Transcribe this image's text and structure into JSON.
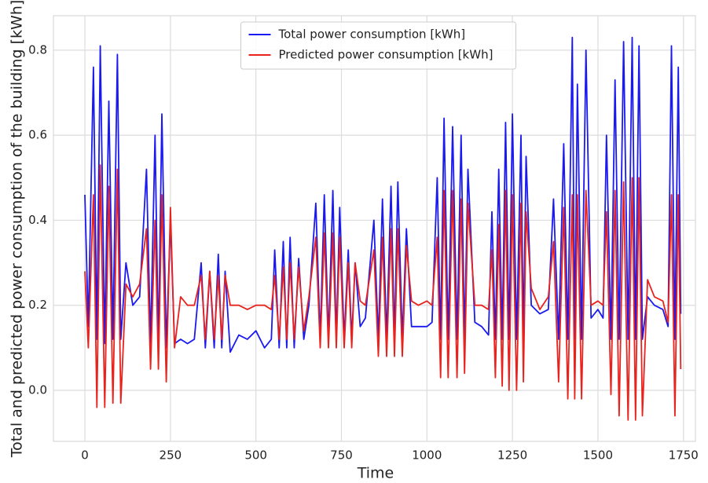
{
  "chart_data": {
    "type": "line",
    "xlabel": "Time",
    "ylabel": "Total and predicted power consumption of the building [kWh]",
    "x": [
      0,
      10,
      25,
      35,
      45,
      58,
      70,
      82,
      95,
      105,
      120,
      140,
      160,
      180,
      192,
      205,
      215,
      225,
      238,
      250,
      262,
      280,
      300,
      320,
      340,
      352,
      365,
      378,
      390,
      400,
      410,
      425,
      450,
      475,
      500,
      525,
      545,
      555,
      568,
      580,
      590,
      600,
      612,
      625,
      640,
      655,
      675,
      688,
      700,
      712,
      725,
      735,
      745,
      758,
      770,
      780,
      790,
      805,
      820,
      845,
      858,
      870,
      882,
      895,
      905,
      915,
      928,
      940,
      955,
      975,
      1000,
      1015,
      1030,
      1040,
      1050,
      1062,
      1075,
      1088,
      1100,
      1110,
      1120,
      1140,
      1160,
      1180,
      1190,
      1200,
      1210,
      1220,
      1230,
      1240,
      1250,
      1262,
      1275,
      1282,
      1290,
      1305,
      1330,
      1355,
      1370,
      1385,
      1400,
      1412,
      1425,
      1432,
      1440,
      1452,
      1465,
      1480,
      1500,
      1515,
      1525,
      1538,
      1550,
      1562,
      1575,
      1588,
      1600,
      1610,
      1620,
      1630,
      1645,
      1665,
      1690,
      1705,
      1715,
      1725,
      1735,
      1742
    ],
    "series": [
      {
        "name": "Total power consumption [kWh]",
        "color": "#1a1af0",
        "values": [
          0.46,
          0.15,
          0.76,
          0.12,
          0.81,
          0.11,
          0.68,
          0.12,
          0.79,
          0.12,
          0.3,
          0.2,
          0.22,
          0.52,
          0.11,
          0.6,
          0.1,
          0.65,
          0.1,
          0.4,
          0.11,
          0.12,
          0.11,
          0.12,
          0.3,
          0.1,
          0.28,
          0.1,
          0.32,
          0.1,
          0.28,
          0.09,
          0.13,
          0.12,
          0.14,
          0.1,
          0.12,
          0.33,
          0.1,
          0.35,
          0.1,
          0.36,
          0.1,
          0.31,
          0.12,
          0.2,
          0.44,
          0.12,
          0.46,
          0.12,
          0.47,
          0.12,
          0.43,
          0.12,
          0.33,
          0.12,
          0.3,
          0.15,
          0.17,
          0.4,
          0.12,
          0.45,
          0.12,
          0.48,
          0.12,
          0.49,
          0.12,
          0.38,
          0.15,
          0.15,
          0.15,
          0.16,
          0.5,
          0.12,
          0.64,
          0.12,
          0.62,
          0.12,
          0.6,
          0.12,
          0.52,
          0.16,
          0.15,
          0.13,
          0.42,
          0.12,
          0.52,
          0.12,
          0.63,
          0.12,
          0.65,
          0.12,
          0.6,
          0.12,
          0.55,
          0.2,
          0.18,
          0.19,
          0.45,
          0.12,
          0.58,
          0.12,
          0.83,
          0.12,
          0.72,
          0.12,
          0.8,
          0.17,
          0.19,
          0.17,
          0.6,
          0.12,
          0.73,
          0.12,
          0.82,
          0.12,
          0.83,
          0.12,
          0.81,
          0.12,
          0.22,
          0.2,
          0.19,
          0.15,
          0.81,
          0.12,
          0.76,
          0.18
        ]
      },
      {
        "name": "Predicted power consumption [kWh]",
        "color": "#e8231e",
        "values": [
          0.28,
          0.1,
          0.46,
          -0.04,
          0.53,
          -0.04,
          0.48,
          -0.03,
          0.52,
          -0.03,
          0.25,
          0.22,
          0.25,
          0.38,
          0.05,
          0.4,
          0.05,
          0.46,
          0.02,
          0.43,
          0.1,
          0.22,
          0.2,
          0.2,
          0.27,
          0.12,
          0.28,
          0.12,
          0.27,
          0.12,
          0.27,
          0.2,
          0.2,
          0.19,
          0.2,
          0.2,
          0.19,
          0.27,
          0.12,
          0.29,
          0.12,
          0.3,
          0.12,
          0.29,
          0.14,
          0.22,
          0.36,
          0.1,
          0.37,
          0.1,
          0.37,
          0.1,
          0.36,
          0.1,
          0.3,
          0.1,
          0.3,
          0.21,
          0.2,
          0.33,
          0.08,
          0.36,
          0.08,
          0.38,
          0.08,
          0.38,
          0.08,
          0.34,
          0.21,
          0.2,
          0.21,
          0.2,
          0.36,
          0.03,
          0.47,
          0.03,
          0.47,
          0.03,
          0.45,
          0.04,
          0.44,
          0.2,
          0.2,
          0.19,
          0.33,
          0.03,
          0.39,
          0.01,
          0.47,
          0.0,
          0.46,
          0.0,
          0.44,
          0.02,
          0.42,
          0.24,
          0.19,
          0.22,
          0.35,
          0.02,
          0.43,
          -0.02,
          0.46,
          -0.02,
          0.46,
          -0.02,
          0.47,
          0.2,
          0.21,
          0.2,
          0.42,
          -0.01,
          0.47,
          -0.06,
          0.49,
          -0.07,
          0.5,
          -0.07,
          0.5,
          -0.06,
          0.26,
          0.22,
          0.21,
          0.16,
          0.46,
          -0.06,
          0.46,
          0.05
        ]
      }
    ],
    "xlim": [
      -92,
      1785
    ],
    "ylim": [
      -0.12,
      0.881
    ],
    "xticks": [
      0,
      250,
      500,
      750,
      1000,
      1250,
      1500,
      1750
    ],
    "yticks": [
      {
        "value": 0,
        "label": "0.0"
      },
      0.2,
      0.4,
      0.6,
      0.8
    ],
    "grid": true,
    "legend": "upper center"
  }
}
